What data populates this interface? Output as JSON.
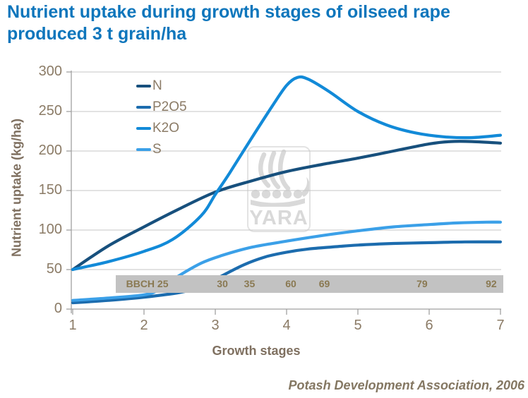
{
  "title": {
    "line1": "Nutrient uptake during growth stages of oilseed rape",
    "line2": "produced 3 t grain/ha"
  },
  "watermark": {
    "text": "YARA"
  },
  "attribution": "Potash Development Association, 2006",
  "colors": {
    "title": "#0e76bc",
    "axis_text": "#8b7b66",
    "axis_title_text": "#7f7060",
    "grid": "#c6c6c6",
    "axis_line": "#a0a0a0",
    "bar_fill": "#c2c2c2",
    "bar_text": "#8a7952",
    "watermark": "#d9d9d9",
    "attribution": "#847762"
  },
  "chart_data": {
    "type": "line",
    "title": "Nutrient uptake during growth stages of oilseed rape produced 3 t grain/ha",
    "xlabel": "Growth stages",
    "ylabel": "Nutrient uptake (kg/ha)",
    "xlim": [
      1,
      7
    ],
    "ylim": [
      0,
      300
    ],
    "x_ticks": [
      1,
      2,
      3,
      4,
      5,
      6,
      7
    ],
    "y_ticks": [
      0,
      50,
      100,
      150,
      200,
      250,
      300
    ],
    "grid": "horizontal",
    "legend_position": "upper-left-inside",
    "series": [
      {
        "name": "N",
        "color": "#17507d",
        "points": [
          [
            1,
            50
          ],
          [
            1.5,
            80
          ],
          [
            2,
            104
          ],
          [
            2.5,
            127
          ],
          [
            3,
            148
          ],
          [
            3.5,
            162
          ],
          [
            4,
            174
          ],
          [
            4.5,
            183
          ],
          [
            5,
            191
          ],
          [
            5.5,
            200
          ],
          [
            6,
            209
          ],
          [
            6.3,
            212
          ],
          [
            6.6,
            212
          ],
          [
            7,
            210
          ]
        ]
      },
      {
        "name": "P2O5",
        "color": "#1c6cae",
        "points": [
          [
            1,
            8
          ],
          [
            1.5,
            11
          ],
          [
            2,
            15
          ],
          [
            2.5,
            21
          ],
          [
            2.8,
            28
          ],
          [
            3.05,
            40
          ],
          [
            3.4,
            56
          ],
          [
            3.7,
            66
          ],
          [
            4,
            72
          ],
          [
            4.3,
            76
          ],
          [
            4.7,
            79
          ],
          [
            5,
            81
          ],
          [
            5.5,
            83
          ],
          [
            6,
            84
          ],
          [
            6.5,
            85
          ],
          [
            7,
            85
          ]
        ]
      },
      {
        "name": "K2O",
        "color": "#128ad8",
        "points": [
          [
            1,
            50
          ],
          [
            1.5,
            60
          ],
          [
            2,
            73
          ],
          [
            2.4,
            88
          ],
          [
            2.8,
            118
          ],
          [
            3,
            145
          ],
          [
            3.2,
            172
          ],
          [
            3.5,
            215
          ],
          [
            3.8,
            257
          ],
          [
            4,
            283
          ],
          [
            4.15,
            293
          ],
          [
            4.3,
            291
          ],
          [
            4.6,
            275
          ],
          [
            5,
            250
          ],
          [
            5.4,
            233
          ],
          [
            5.8,
            223
          ],
          [
            6.2,
            218
          ],
          [
            6.6,
            217
          ],
          [
            7,
            220
          ]
        ]
      },
      {
        "name": "S",
        "color": "#3ba0e8",
        "points": [
          [
            1,
            11
          ],
          [
            1.5,
            14
          ],
          [
            2,
            18
          ],
          [
            2.2,
            24
          ],
          [
            2.45,
            40
          ],
          [
            2.8,
            58
          ],
          [
            3.1,
            68
          ],
          [
            3.5,
            78
          ],
          [
            4,
            86
          ],
          [
            4.5,
            93
          ],
          [
            5,
            99
          ],
          [
            5.5,
            104
          ],
          [
            6,
            107
          ],
          [
            6.4,
            109
          ],
          [
            6.8,
            110
          ],
          [
            7,
            110
          ]
        ]
      }
    ],
    "bbch_bar": {
      "prefix_label": "BBCH 25",
      "range_x": [
        1.6,
        7.04
      ],
      "labels": [
        {
          "text": "30",
          "x": 3.1
        },
        {
          "text": "35",
          "x": 3.48
        },
        {
          "text": "60",
          "x": 4.06
        },
        {
          "text": "69",
          "x": 4.53
        },
        {
          "text": "79",
          "x": 5.9
        },
        {
          "text": "92",
          "x": 6.87
        }
      ]
    }
  }
}
